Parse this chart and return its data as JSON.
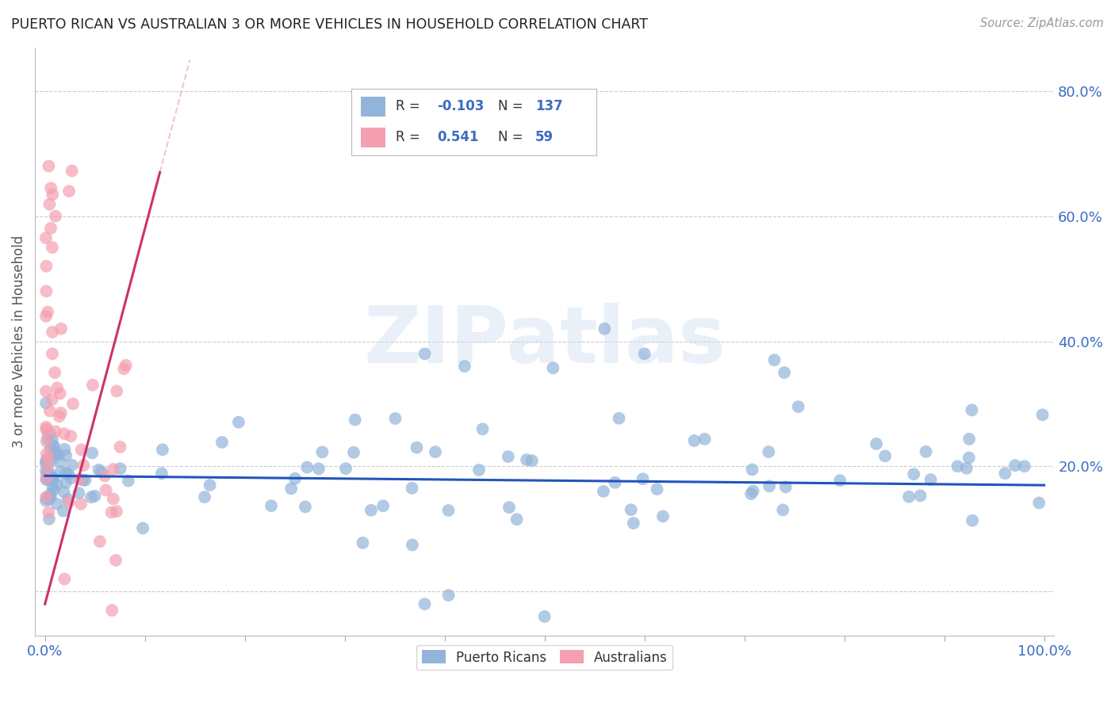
{
  "title": "PUERTO RICAN VS AUSTRALIAN 3 OR MORE VEHICLES IN HOUSEHOLD CORRELATION CHART",
  "source": "Source: ZipAtlas.com",
  "ylabel": "3 or more Vehicles in Household",
  "watermark": "ZIPatlas",
  "legend_labels": [
    "Puerto Ricans",
    "Australians"
  ],
  "blue_color": "#92B4D9",
  "pink_color": "#F4A0B0",
  "blue_line_color": "#2255BB",
  "pink_line_color": "#CC3366",
  "pink_dash_color": "#E8A0B8",
  "R_blue": -0.103,
  "N_blue": 137,
  "R_pink": 0.541,
  "N_pink": 59,
  "xlim": [
    -0.01,
    1.01
  ],
  "ylim": [
    -0.07,
    0.87
  ],
  "ytick_positions": [
    0.0,
    0.2,
    0.4,
    0.6,
    0.8
  ],
  "ytick_labels": [
    "",
    "20.0%",
    "40.0%",
    "60.0%",
    "80.0%"
  ],
  "xtick_positions": [
    0.0,
    0.1,
    0.2,
    0.3,
    0.4,
    0.5,
    0.6,
    0.7,
    0.8,
    0.9,
    1.0
  ],
  "xtick_labels_bottom": [
    "0.0%",
    "",
    "",
    "",
    "",
    "",
    "",
    "",
    "",
    "",
    "100.0%"
  ],
  "background_color": "#ffffff",
  "grid_color": "#cccccc",
  "title_color": "#222222",
  "axis_color": "#3B6CC5",
  "tick_label_color": "#3B6CC5",
  "blue_line_intercept": 0.185,
  "blue_line_slope": -0.015,
  "pink_line_intercept": -0.02,
  "pink_line_slope": 6.0,
  "pink_line_x_end": 0.115
}
